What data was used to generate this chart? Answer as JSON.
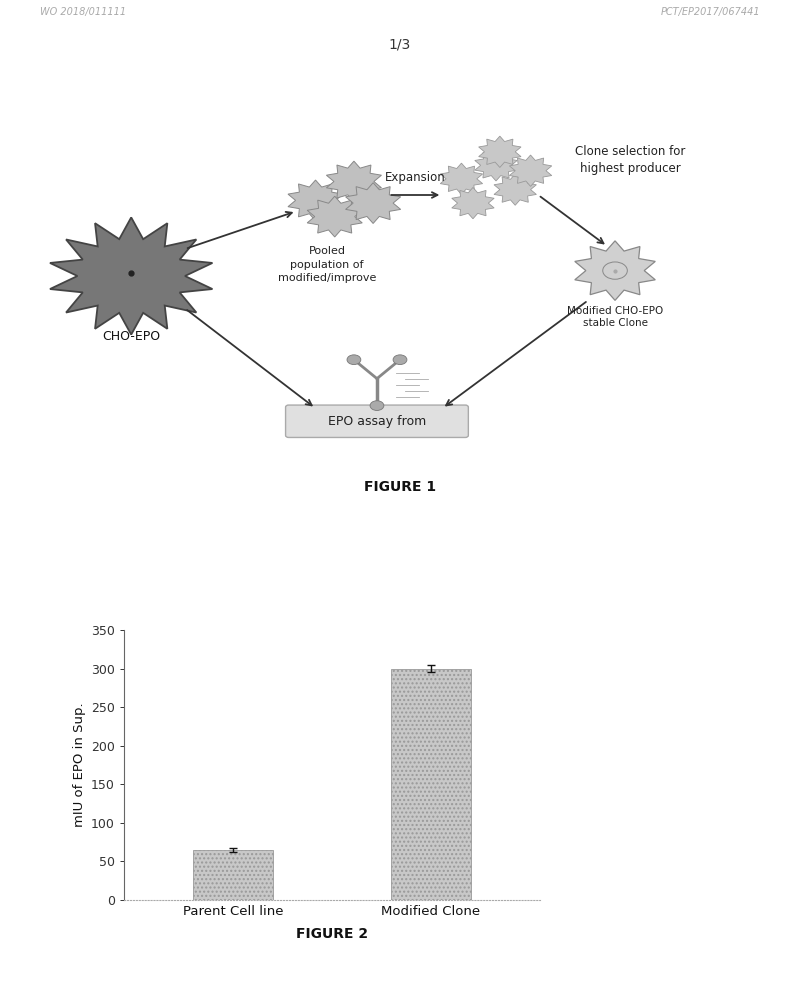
{
  "page_label": "1/3",
  "figure1_label": "FIGURE 1",
  "figure2_label": "FIGURE 2",
  "diagram_elements": {
    "cho_epo_label": "CHO-EPO",
    "pooled_label": "Pooled\npopulation of\nmodified/improve",
    "expansion_label": "Expansion",
    "clone_selection_label": "Clone selection for\nhighest producer",
    "modified_label": "Modified CHO-EPO\nstable Clone",
    "epo_assay_label": "EPO assay from"
  },
  "bar_categories": [
    "Parent Cell line",
    "Modified Clone"
  ],
  "bar_values": [
    65,
    300
  ],
  "bar_errors": [
    3,
    5
  ],
  "bar_color": "#c8c8c8",
  "bar_hatch": "....",
  "ylabel": "mIU of EPO in Sup.",
  "ylim": [
    0,
    350
  ],
  "yticks": [
    0,
    50,
    100,
    150,
    200,
    250,
    300,
    350
  ],
  "background_color": "#ffffff",
  "text_color": "#000000",
  "header_left": "WO 2018/011111",
  "header_right": "PCT/EP2017/067441"
}
